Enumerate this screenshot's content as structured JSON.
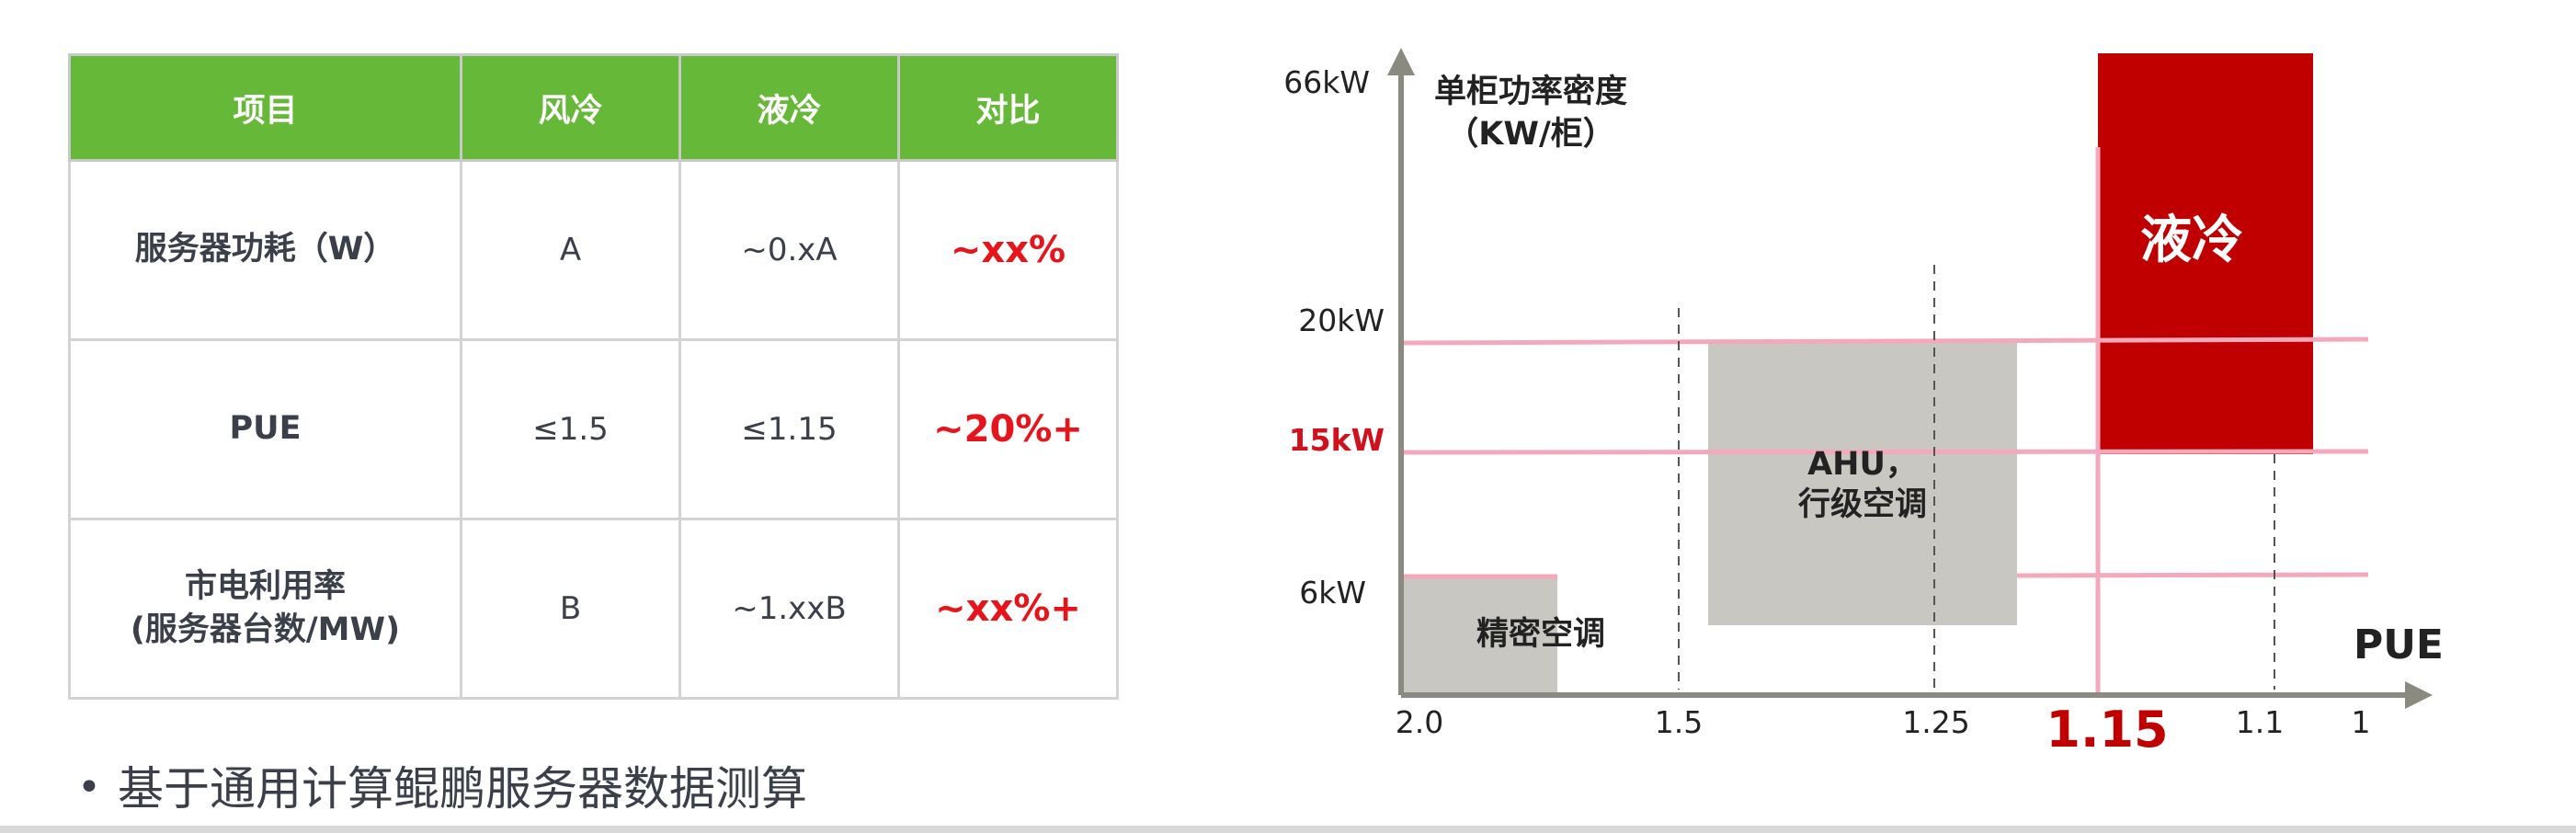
{
  "table": {
    "headers": [
      "项目",
      "风冷",
      "液冷",
      "对比"
    ],
    "rows": [
      {
        "item": "服务器功耗（W）",
        "air": "A",
        "liquid": "~0.xA",
        "diff": "~xx%"
      },
      {
        "item": "PUE",
        "air": "≤1.5",
        "liquid": "≤1.15",
        "diff": "~20%+"
      },
      {
        "item_line1": "市电利用率",
        "item_line2": "(服务器台数/MW)",
        "air": "B",
        "liquid": "~1.xxB",
        "diff": "~xx%+"
      }
    ]
  },
  "footnote": {
    "bullet": "•",
    "text": "基于通用计算鲲鹏服务器数据测算"
  },
  "colors": {
    "header_green": "#66b838",
    "diff_red": "#e8141b",
    "liquid_red": "#c00000",
    "box_gray": "#c8c7c1",
    "axis_gray": "#8a8a80",
    "grid_pink": "#f3a9bb"
  },
  "chart_data": {
    "type": "region-diagram",
    "x_axis_label": "PUE",
    "y_axis_label_line1": "单柜功率密度",
    "y_axis_label_line2": "（KW/柜）",
    "x_ticks": [
      "2.0",
      "1.5",
      "1.25",
      "1.15",
      "1.1",
      "1"
    ],
    "highlighted_x_tick": "1.15",
    "y_ticks": [
      "66kW",
      "20kW",
      "15kW",
      "6kW"
    ],
    "highlighted_y_tick": "15kW",
    "regions": [
      {
        "label": "精密空调",
        "pue_range": [
          "2.0",
          "1.5"
        ],
        "power_range": [
          "0",
          "6kW"
        ]
      },
      {
        "label_line1": "AHU，",
        "label_line2": "行级空调",
        "pue_range": [
          "1.5",
          "1.25"
        ],
        "power_range": [
          "6kW",
          "20kW"
        ]
      },
      {
        "label": "液冷",
        "pue_range": [
          "1.15",
          "1.1"
        ],
        "power_range": [
          "15kW",
          "66kW"
        ]
      }
    ]
  }
}
